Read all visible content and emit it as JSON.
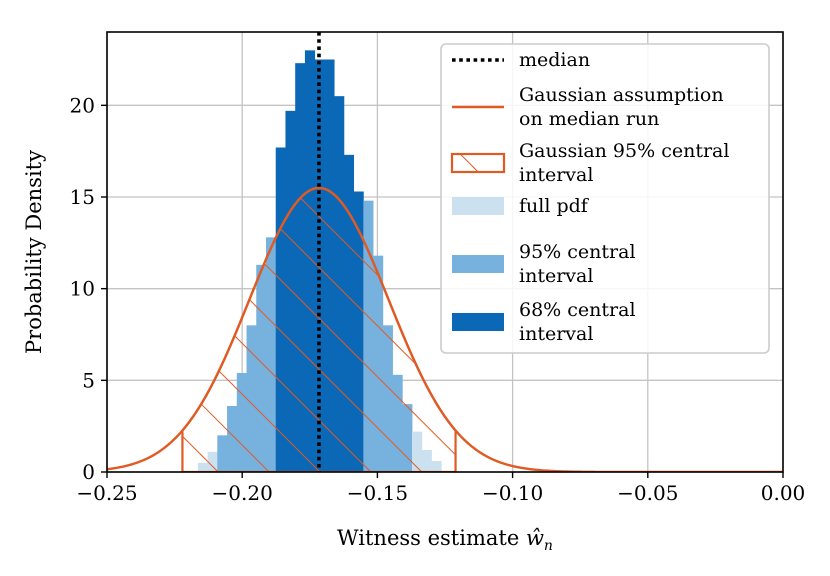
{
  "chart_data": {
    "type": "bar",
    "xlabel": "Witness estimate ",
    "xlabel_symbol": "ŵ",
    "xlabel_subscript": "n",
    "ylabel": "Probability Density",
    "xlim": [
      -0.25,
      0.0
    ],
    "ylim": [
      0,
      24
    ],
    "grid": true,
    "legend_position": "top-right",
    "x_ticks": [
      {
        "value": -0.25,
        "label": "−0.25"
      },
      {
        "value": -0.2,
        "label": "−0.20"
      },
      {
        "value": -0.15,
        "label": "−0.15"
      },
      {
        "value": -0.1,
        "label": "−0.10"
      },
      {
        "value": -0.05,
        "label": "−0.05"
      },
      {
        "value": 0.0,
        "label": "0.00"
      }
    ],
    "y_ticks": [
      {
        "value": 0,
        "label": "0"
      },
      {
        "value": 5,
        "label": "5"
      },
      {
        "value": 10,
        "label": "10"
      },
      {
        "value": 15,
        "label": "15"
      },
      {
        "value": 20,
        "label": "20"
      }
    ],
    "histogram": {
      "bin_edges": [
        -0.2164,
        -0.2128,
        -0.2092,
        -0.2056,
        -0.202,
        -0.1984,
        -0.1948,
        -0.1912,
        -0.1876,
        -0.184,
        -0.1804,
        -0.1768,
        -0.1732,
        -0.1696,
        -0.166,
        -0.1624,
        -0.1588,
        -0.1552,
        -0.1516,
        -0.148,
        -0.1444,
        -0.1408,
        -0.1372,
        -0.1336,
        -0.13,
        -0.1264
      ],
      "densities": [
        0.5,
        1.1,
        2.0,
        3.6,
        5.4,
        8.0,
        11.3,
        12.8,
        17.7,
        19.7,
        22.3,
        23.0,
        22.5,
        22.5,
        20.5,
        17.3,
        15.3,
        14.8,
        11.8,
        8.0,
        5.3,
        3.7,
        2.2,
        1.2,
        0.6
      ],
      "intervals": [
        "full",
        "full",
        "c95",
        "c95",
        "c95",
        "c95",
        "c95",
        "c95",
        "c68",
        "c68",
        "c68",
        "c68",
        "c68",
        "c68",
        "c68",
        "c68",
        "c68",
        "c95",
        "c95",
        "c95",
        "c95",
        "c95",
        "full",
        "full",
        "full"
      ]
    },
    "median": -0.1716,
    "gaussian": {
      "mean": -0.1716,
      "sigma": 0.02575
    },
    "gaussian_interval": [
      -0.2221,
      -0.1211
    ],
    "colors": {
      "full": "#cbe1f0",
      "c95": "#77b1dd",
      "c68": "#0a68b7",
      "gaussian": "#e05a24",
      "median": "#000000",
      "grid": "#c4c4c4"
    },
    "legend": [
      {
        "key": "median",
        "lines": [
          "median"
        ]
      },
      {
        "key": "gaussian",
        "lines": [
          "Gaussian assumption",
          "on median run"
        ]
      },
      {
        "key": "gauss_interval",
        "lines": [
          "Gaussian 95% central",
          "interval"
        ]
      },
      {
        "key": "full",
        "lines": [
          "full pdf"
        ]
      },
      {
        "key": "c95",
        "lines": [
          "95% central",
          "interval"
        ]
      },
      {
        "key": "c68",
        "lines": [
          "68% central",
          "interval"
        ]
      }
    ]
  }
}
